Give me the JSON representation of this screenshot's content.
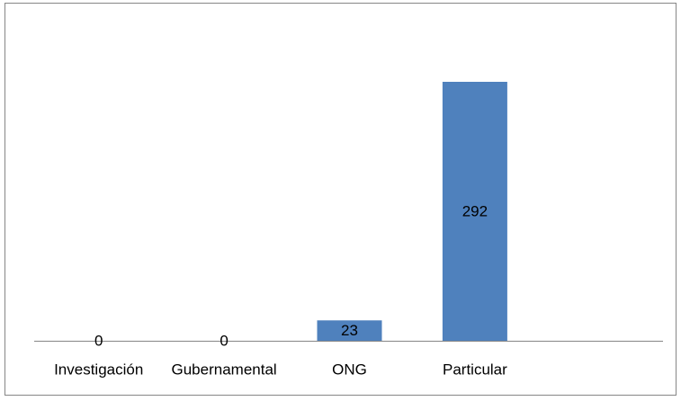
{
  "chart_data": {
    "type": "bar",
    "categories": [
      "Investigación",
      "Gubernamental",
      "ONG",
      "Particular"
    ],
    "values": [
      0,
      0,
      23,
      292
    ],
    "color": "#4f81bd"
  }
}
